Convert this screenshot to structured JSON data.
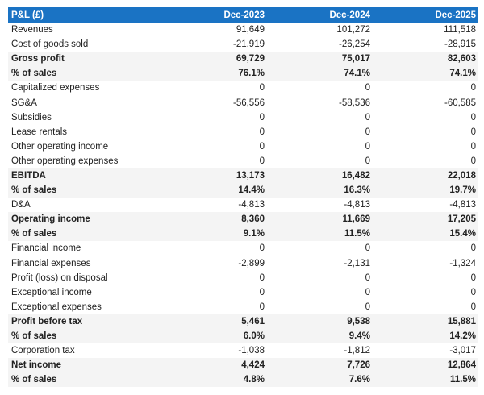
{
  "header": {
    "title": "P&L (£)",
    "columns": [
      "Dec-2023",
      "Dec-2024",
      "Dec-2025"
    ]
  },
  "colors": {
    "header_bg": "#1a73c4",
    "bold_row_bg": "#f4f4f4"
  },
  "rows": [
    {
      "label": "Revenues",
      "values": [
        "91,649",
        "101,272",
        "111,518"
      ],
      "bold": false
    },
    {
      "label": "Cost of goods sold",
      "values": [
        "-21,919",
        "-26,254",
        "-28,915"
      ],
      "bold": false
    },
    {
      "label": "Gross profit",
      "values": [
        "69,729",
        "75,017",
        "82,603"
      ],
      "bold": true
    },
    {
      "label": "% of sales",
      "values": [
        "76.1%",
        "74.1%",
        "74.1%"
      ],
      "bold": true
    },
    {
      "label": "Capitalized expenses",
      "values": [
        "0",
        "0",
        "0"
      ],
      "bold": false
    },
    {
      "label": "SG&A",
      "values": [
        "-56,556",
        "-58,536",
        "-60,585"
      ],
      "bold": false
    },
    {
      "label": "Subsidies",
      "values": [
        "0",
        "0",
        "0"
      ],
      "bold": false
    },
    {
      "label": "Lease rentals",
      "values": [
        "0",
        "0",
        "0"
      ],
      "bold": false
    },
    {
      "label": "Other operating income",
      "values": [
        "0",
        "0",
        "0"
      ],
      "bold": false
    },
    {
      "label": "Other operating expenses",
      "values": [
        "0",
        "0",
        "0"
      ],
      "bold": false
    },
    {
      "label": "EBITDA",
      "values": [
        "13,173",
        "16,482",
        "22,018"
      ],
      "bold": true
    },
    {
      "label": "% of sales",
      "values": [
        "14.4%",
        "16.3%",
        "19.7%"
      ],
      "bold": true
    },
    {
      "label": "D&A",
      "values": [
        "-4,813",
        "-4,813",
        "-4,813"
      ],
      "bold": false
    },
    {
      "label": "Operating income",
      "values": [
        "8,360",
        "11,669",
        "17,205"
      ],
      "bold": true
    },
    {
      "label": "% of sales",
      "values": [
        "9.1%",
        "11.5%",
        "15.4%"
      ],
      "bold": true
    },
    {
      "label": "Financial income",
      "values": [
        "0",
        "0",
        "0"
      ],
      "bold": false
    },
    {
      "label": "Financial expenses",
      "values": [
        "-2,899",
        "-2,131",
        "-1,324"
      ],
      "bold": false
    },
    {
      "label": "Profit (loss) on disposal",
      "values": [
        "0",
        "0",
        "0"
      ],
      "bold": false
    },
    {
      "label": "Exceptional income",
      "values": [
        "0",
        "0",
        "0"
      ],
      "bold": false
    },
    {
      "label": "Exceptional expenses",
      "values": [
        "0",
        "0",
        "0"
      ],
      "bold": false
    },
    {
      "label": "Profit before tax",
      "values": [
        "5,461",
        "9,538",
        "15,881"
      ],
      "bold": true
    },
    {
      "label": "% of sales",
      "values": [
        "6.0%",
        "9.4%",
        "14.2%"
      ],
      "bold": true
    },
    {
      "label": "Corporation tax",
      "values": [
        "-1,038",
        "-1,812",
        "-3,017"
      ],
      "bold": false
    },
    {
      "label": "Net income",
      "values": [
        "4,424",
        "7,726",
        "12,864"
      ],
      "bold": true
    },
    {
      "label": "% of sales",
      "values": [
        "4.8%",
        "7.6%",
        "11.5%"
      ],
      "bold": true
    }
  ]
}
